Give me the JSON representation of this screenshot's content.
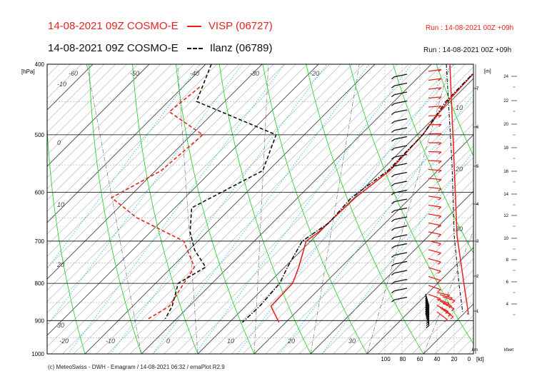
{
  "header": {
    "line1_model": "14-08-2021 09Z COSMO-E",
    "line1_station": "VISP (06727)",
    "line1_run": "Run : 14-08-2021 00Z +09h",
    "line2_model": "14-08-2021 09Z COSMO-E",
    "line2_station": "Ilanz (06789)",
    "line2_run": "Run : 14-08-2021 00Z +09h"
  },
  "footer": "(c) MeteoSwiss - DWH - Emagram / 14-08-2021  06:32 / emaPlot R2.9",
  "colors": {
    "visp": "#e8231d",
    "ilanz": "#111111",
    "dry_adiabat": "#2fd12f",
    "isotherm": "#333333",
    "mixing_ratio": "#29c4e6",
    "grid": "#000000"
  },
  "chart_data": {
    "type": "line",
    "title": "",
    "yaxis_unit": "[hPa]",
    "y_scale": "log",
    "ylim_hpa": [
      1000,
      400
    ],
    "pressure_ticks": [
      "400",
      "500",
      "600",
      "700",
      "800",
      "900",
      "1000"
    ],
    "isotherm_labels": [
      "-60",
      "-50",
      "-40",
      "-30",
      "-20",
      "-10",
      "0",
      "10",
      "20",
      "30"
    ],
    "bottom_temperature_labels": [
      "-20",
      "-10",
      "0",
      "10",
      "20",
      "30"
    ],
    "wind_speed_scale": {
      "labels": [
        "100",
        "80",
        "60",
        "40",
        "20",
        "0"
      ],
      "unit": "[kt]"
    },
    "km_axis": {
      "title": "[m]",
      "footer": "km",
      "ticks": [
        "1",
        "2",
        "3",
        "4",
        "5",
        "6",
        "7"
      ]
    },
    "kfeet_axis": {
      "footer": "kfeet",
      "ticks": [
        "4",
        "6",
        "8",
        "10",
        "12",
        "14",
        "16",
        "18",
        "20",
        "22",
        "24"
      ]
    },
    "diagonal_labels": [
      "10",
      "20",
      "30"
    ],
    "series": [
      {
        "name": "VISP (06727)",
        "kind": "temperature",
        "points": [
          [
            -1,
            400
          ],
          [
            -0.5,
            450
          ],
          [
            1,
            500
          ],
          [
            1.5,
            560
          ],
          [
            0.2,
            610
          ],
          [
            -0.2,
            680
          ],
          [
            -0.8,
            700
          ],
          [
            2.5,
            760
          ],
          [
            4.3,
            800
          ],
          [
            4.5,
            860
          ],
          [
            8.8,
            905
          ]
        ]
      },
      {
        "name": "VISP (06727)",
        "kind": "dewpoint",
        "points": [
          [
            -47,
            430
          ],
          [
            -48,
            465
          ],
          [
            -38,
            500
          ],
          [
            -39,
            560
          ],
          [
            -43,
            610
          ],
          [
            -35,
            650
          ],
          [
            -22.5,
            700
          ],
          [
            -16,
            760
          ],
          [
            -15,
            800
          ],
          [
            -13.5,
            860
          ],
          [
            -15,
            895
          ]
        ]
      },
      {
        "name": "Ilanz (06789)",
        "kind": "temperature",
        "points": [
          [
            -1,
            400
          ],
          [
            -0.8,
            450
          ],
          [
            1,
            500
          ],
          [
            1.2,
            560
          ],
          [
            -0.5,
            610
          ],
          [
            0,
            660
          ],
          [
            -1.5,
            700
          ],
          [
            0.5,
            760
          ],
          [
            2,
            800
          ],
          [
            2.5,
            860
          ],
          [
            2.3,
            905
          ]
        ]
      },
      {
        "name": "Ilanz (06789)",
        "kind": "dewpoint",
        "points": [
          [
            -49,
            400
          ],
          [
            -45,
            450
          ],
          [
            -25,
            500
          ],
          [
            -21,
            560
          ],
          [
            -27,
            630
          ],
          [
            -23,
            680
          ],
          [
            -19,
            720
          ],
          [
            -14,
            760
          ],
          [
            -16,
            800
          ],
          [
            -13,
            860
          ],
          [
            -12,
            895
          ]
        ]
      }
    ]
  }
}
